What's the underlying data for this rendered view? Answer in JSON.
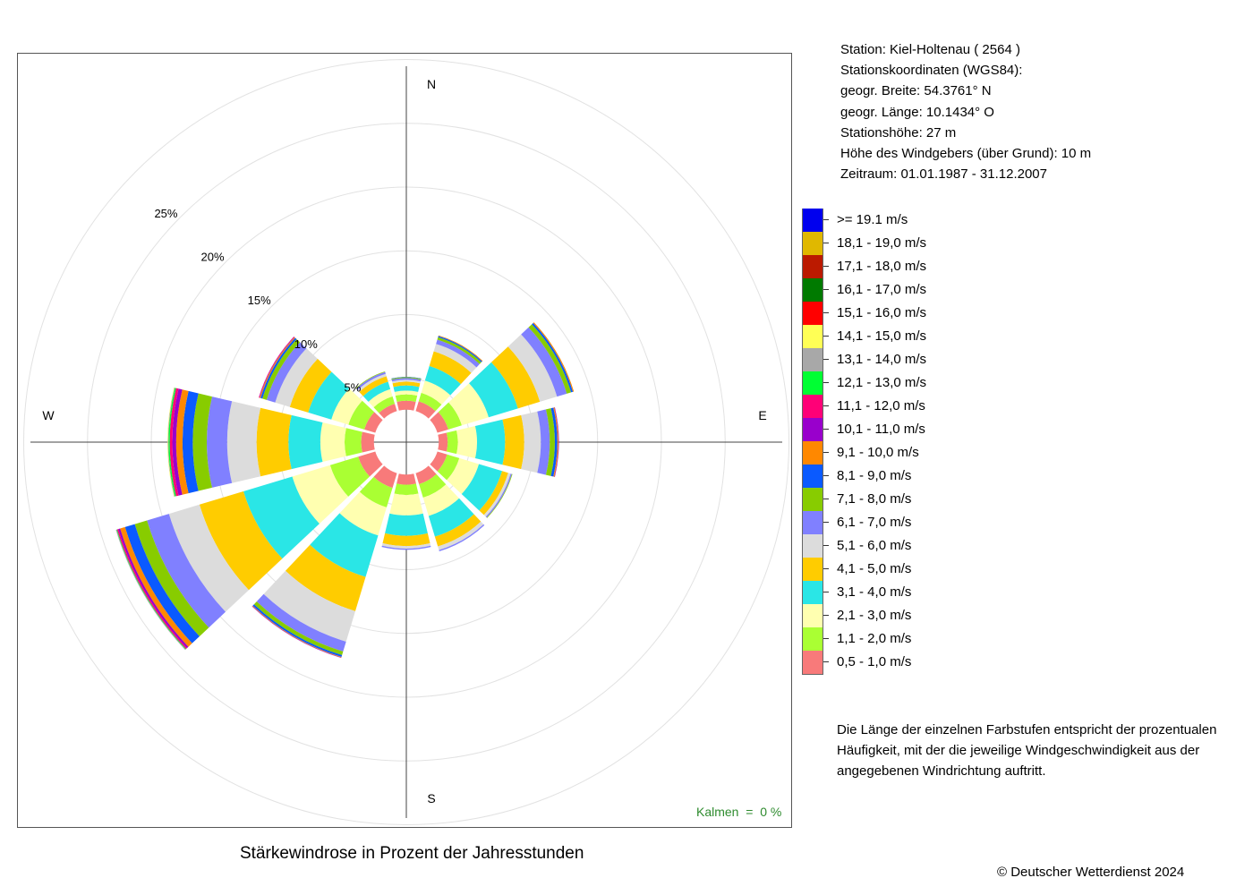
{
  "station_info": {
    "station": "Station:  Kiel-Holtenau  ( 2564 )",
    "coords_header": "Stationskoordinaten (WGS84):",
    "latitude": "geogr. Breite: 54.3761° N",
    "longitude": "geogr. Länge: 10.1434° O",
    "elevation": "Stationshöhe: 27 m",
    "anemometer_height": "Höhe des Windgebers (über Grund): 10 m",
    "period": "Zeitraum: 01.01.1987 - 31.12.2007"
  },
  "legend": [
    {
      "label": ">= 19.1 m/s",
      "color": "#0000ee"
    },
    {
      "label": "18,1 - 19,0 m/s",
      "color": "#e0b800"
    },
    {
      "label": "17,1 - 18,0 m/s",
      "color": "#bb1a00"
    },
    {
      "label": "16,1 - 17,0 m/s",
      "color": "#007a00"
    },
    {
      "label": "15,1 - 16,0 m/s",
      "color": "#ff0000"
    },
    {
      "label": "14,1 - 15,0 m/s",
      "color": "#ffff55"
    },
    {
      "label": "13,1 - 14,0 m/s",
      "color": "#a8a8a8"
    },
    {
      "label": "12,1 - 13,0 m/s",
      "color": "#00ff33"
    },
    {
      "label": "11,1 - 12,0 m/s",
      "color": "#ff0077"
    },
    {
      "label": "10,1 - 11,0 m/s",
      "color": "#9900cc"
    },
    {
      "label": "9,1 - 10,0 m/s",
      "color": "#ff8800"
    },
    {
      "label": "8,1 - 9,0 m/s",
      "color": "#0a5aff"
    },
    {
      "label": "7,1 - 8,0 m/s",
      "color": "#88cc00"
    },
    {
      "label": "6,1 - 7,0 m/s",
      "color": "#8080ff"
    },
    {
      "label": "5,1 - 6,0 m/s",
      "color": "#dcdcdc"
    },
    {
      "label": "4,1 - 5,0 m/s",
      "color": "#ffcc00"
    },
    {
      "label": "3,1 - 4,0 m/s",
      "color": "#2ae6e6"
    },
    {
      "label": "2,1 - 3,0 m/s",
      "color": "#ffffb0"
    },
    {
      "label": "1,1 - 2,0 m/s",
      "color": "#aaff33"
    },
    {
      "label": "0,5 - 1,0 m/s",
      "color": "#f87a7a"
    }
  ],
  "note": "Die Länge der einzelnen Farbstufen entspricht der prozentualen Häufigkeit, mit der die jeweilige Windgeschwindigkeit aus der angegebenen Windrichtung auftritt.",
  "title": "Stärkewindrose in Prozent der Jahresstunden",
  "copyright": "© Deutscher Wetterdienst  2024",
  "calm_label": "Kalmen  =  0 %",
  "chart_data": {
    "type": "wind-rose",
    "compass": [
      "N",
      "E",
      "S",
      "W"
    ],
    "ring_labels": [
      "5%",
      "10%",
      "15%",
      "20%",
      "25%"
    ],
    "ring_values": [
      5,
      10,
      15,
      20,
      25
    ],
    "calm_percent": 0,
    "hole_percent": 1.0,
    "directions_deg": [
      0,
      30,
      60,
      90,
      120,
      150,
      180,
      210,
      240,
      270,
      300,
      330
    ],
    "speed_bin_order": [
      "0,5 - 1,0 m/s",
      "1,1 - 2,0 m/s",
      "2,1 - 3,0 m/s",
      "3,1 - 4,0 m/s",
      "4,1 - 5,0 m/s",
      "5,1 - 6,0 m/s",
      "6,1 - 7,0 m/s",
      "7,1 - 8,0 m/s",
      "8,1 - 9,0 m/s",
      "9,1 - 10,0 m/s",
      "10,1 - 11,0 m/s",
      "11,1 - 12,0 m/s",
      "12,1 - 13,0 m/s",
      "13,1 - 14,0 m/s",
      "14,1 - 15,0 m/s",
      "15,1 - 16,0 m/s",
      "16,1 - 17,0 m/s",
      "17,1 - 18,0 m/s",
      "18,1 - 19,0 m/s",
      ">= 19.1 m/s"
    ],
    "cumulative_percent": [
      [
        1.7,
        2.2,
        2.5,
        2.9,
        3.2,
        3.35,
        3.48,
        3.55,
        3.58,
        3.6,
        3.6,
        3.6,
        3.6,
        3.6,
        3.6,
        3.6,
        3.6,
        3.6,
        3.6,
        3.6
      ],
      [
        1.8,
        2.5,
        3.5,
        4.7,
        5.9,
        6.5,
        6.85,
        7.05,
        7.15,
        7.2,
        7.22,
        7.23,
        7.24,
        7.25,
        7.25,
        7.25,
        7.25,
        7.25,
        7.25,
        7.25
      ],
      [
        1.9,
        3.0,
        5.2,
        7.6,
        9.4,
        10.8,
        11.6,
        11.95,
        12.1,
        12.18,
        12.2,
        12.2,
        12.2,
        12.2,
        12.2,
        12.2,
        12.2,
        12.2,
        12.2,
        12.2
      ],
      [
        1.7,
        2.5,
        4.0,
        6.2,
        7.7,
        9.0,
        9.7,
        10.1,
        10.3,
        10.38,
        10.42,
        10.44,
        10.45,
        10.45,
        10.45,
        10.45,
        10.45,
        10.45,
        10.45,
        10.45
      ],
      [
        1.8,
        2.8,
        4.4,
        6.3,
        6.8,
        7.0,
        7.1,
        7.15,
        7.17,
        7.18,
        7.18,
        7.18,
        7.18,
        7.18,
        7.18,
        7.18,
        7.18,
        7.18,
        7.18,
        7.18
      ],
      [
        1.9,
        3.0,
        4.5,
        6.2,
        7.0,
        7.3,
        7.4,
        7.42,
        7.43,
        7.44,
        7.44,
        7.44,
        7.44,
        7.44,
        7.44,
        7.44,
        7.44,
        7.44,
        7.44,
        7.44
      ],
      [
        1.8,
        2.6,
        4.2,
        5.8,
        6.6,
        6.8,
        6.9,
        6.92,
        6.93,
        6.94,
        6.94,
        6.94,
        6.94,
        6.94,
        6.94,
        6.94,
        6.94,
        6.94,
        6.94,
        6.94
      ],
      [
        2.2,
        3.8,
        6.1,
        9.5,
        12.3,
        14.8,
        15.6,
        15.9,
        16.05,
        16.1,
        16.13,
        16.15,
        16.16,
        16.17,
        16.17,
        16.17,
        16.17,
        16.17,
        16.17,
        16.17
      ],
      [
        2.4,
        4.7,
        7.8,
        11.8,
        15.4,
        17.9,
        19.7,
        20.7,
        21.5,
        21.9,
        22.05,
        22.15,
        22.2,
        22.25,
        22.27,
        22.28,
        22.28,
        22.28,
        22.28,
        22.28
      ],
      [
        2.0,
        3.3,
        5.2,
        7.7,
        10.2,
        12.5,
        14.1,
        15.2,
        16.0,
        16.5,
        16.8,
        17.0,
        17.1,
        17.15,
        17.18,
        17.2,
        17.2,
        17.2,
        17.2,
        17.2
      ],
      [
        1.9,
        3.2,
        4.6,
        6.5,
        8.0,
        9.2,
        9.9,
        10.25,
        10.4,
        10.48,
        10.52,
        10.55,
        10.57,
        10.58,
        10.58,
        10.58,
        10.58,
        10.58,
        10.58,
        10.58
      ],
      [
        1.6,
        2.2,
        2.8,
        3.4,
        3.85,
        4.05,
        4.2,
        4.25,
        4.27,
        4.28,
        4.28,
        4.28,
        4.28,
        4.28,
        4.28,
        4.28,
        4.28,
        4.28,
        4.28,
        4.28
      ]
    ]
  }
}
